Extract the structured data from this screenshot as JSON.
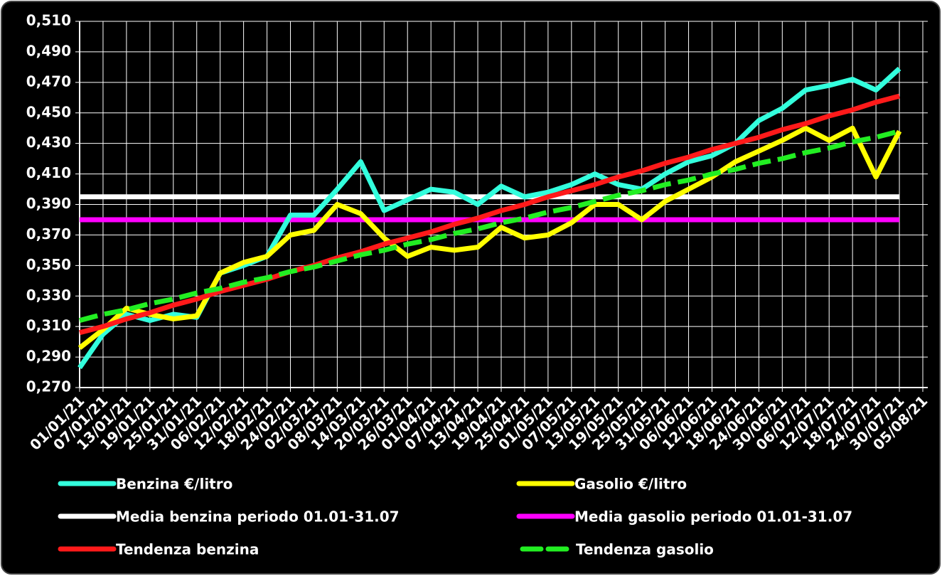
{
  "chart_data": {
    "type": "line",
    "categories": [
      "01/01/21",
      "07/01/21",
      "13/01/21",
      "19/01/21",
      "25/01/21",
      "31/01/21",
      "06/02/21",
      "12/02/21",
      "18/02/21",
      "24/02/21",
      "02/03/21",
      "08/03/21",
      "14/03/21",
      "20/03/21",
      "26/03/21",
      "01/04/21",
      "07/04/21",
      "13/04/21",
      "19/04/21",
      "25/04/21",
      "01/05/21",
      "07/05/21",
      "13/05/21",
      "19/05/21",
      "25/05/21",
      "31/05/21",
      "06/06/21",
      "12/06/21",
      "18/06/21",
      "24/06/21",
      "30/06/21",
      "06/07/21",
      "12/07/21",
      "18/07/21",
      "24/07/21",
      "30/07/21",
      "05/08/21"
    ],
    "series": [
      {
        "name": "Benzina €/litro",
        "color": "#33ffdd",
        "values": [
          0.283,
          0.305,
          0.318,
          0.314,
          0.318,
          0.316,
          0.345,
          0.35,
          0.356,
          0.383,
          0.383,
          0.4,
          0.418,
          0.386,
          0.393,
          0.4,
          0.398,
          0.39,
          0.402,
          0.395,
          0.398,
          0.403,
          0.41,
          0.403,
          0.4,
          0.41,
          0.418,
          0.422,
          0.43,
          0.445,
          0.453,
          0.465,
          0.468,
          0.472,
          0.465,
          0.479,
          null
        ]
      },
      {
        "name": "Gasolio €/litro",
        "color": "#ffff00",
        "values": [
          0.296,
          0.308,
          0.322,
          0.318,
          0.315,
          0.317,
          0.345,
          0.352,
          0.356,
          0.37,
          0.373,
          0.39,
          0.384,
          0.368,
          0.356,
          0.362,
          0.36,
          0.362,
          0.375,
          0.368,
          0.37,
          0.378,
          0.39,
          0.39,
          0.38,
          0.392,
          0.4,
          0.408,
          0.418,
          0.425,
          0.432,
          0.44,
          0.432,
          0.44,
          0.408,
          0.438,
          null
        ]
      },
      {
        "name": "Media benzina periodo 01.01-31.07",
        "color": "#ffffff",
        "values": [
          0.395,
          0.395,
          0.395,
          0.395,
          0.395,
          0.395,
          0.395,
          0.395,
          0.395,
          0.395,
          0.395,
          0.395,
          0.395,
          0.395,
          0.395,
          0.395,
          0.395,
          0.395,
          0.395,
          0.395,
          0.395,
          0.395,
          0.395,
          0.395,
          0.395,
          0.395,
          0.395,
          0.395,
          0.395,
          0.395,
          0.395,
          0.395,
          0.395,
          0.395,
          0.395,
          0.395,
          null
        ]
      },
      {
        "name": "Media gasolio periodo 01.01-31.07",
        "color": "#ff00ff",
        "values": [
          0.38,
          0.38,
          0.38,
          0.38,
          0.38,
          0.38,
          0.38,
          0.38,
          0.38,
          0.38,
          0.38,
          0.38,
          0.38,
          0.38,
          0.38,
          0.38,
          0.38,
          0.38,
          0.38,
          0.38,
          0.38,
          0.38,
          0.38,
          0.38,
          0.38,
          0.38,
          0.38,
          0.38,
          0.38,
          0.38,
          0.38,
          0.38,
          0.38,
          0.38,
          0.38,
          0.38,
          null
        ]
      },
      {
        "name": "Tendenza benzina",
        "color": "#ff1a1a",
        "values": [
          0.306,
          0.31,
          0.315,
          0.319,
          0.324,
          0.328,
          0.333,
          0.337,
          0.341,
          0.346,
          0.35,
          0.355,
          0.359,
          0.364,
          0.368,
          0.372,
          0.377,
          0.381,
          0.386,
          0.39,
          0.395,
          0.399,
          0.403,
          0.408,
          0.412,
          0.417,
          0.421,
          0.426,
          0.43,
          0.434,
          0.439,
          0.443,
          0.448,
          0.452,
          0.457,
          0.461,
          null
        ]
      },
      {
        "name": "Tendenza gasolio",
        "color": "#22ee22",
        "dashed": true,
        "values": [
          0.314,
          0.318,
          0.321,
          0.325,
          0.328,
          0.332,
          0.335,
          0.339,
          0.342,
          0.346,
          0.349,
          0.353,
          0.357,
          0.36,
          0.364,
          0.367,
          0.371,
          0.374,
          0.378,
          0.381,
          0.385,
          0.388,
          0.392,
          0.396,
          0.399,
          0.403,
          0.406,
          0.41,
          0.413,
          0.417,
          0.42,
          0.424,
          0.427,
          0.431,
          0.434,
          0.438,
          null
        ]
      }
    ],
    "ylim": [
      0.27,
      0.51
    ],
    "yticks": [
      {
        "value": 0.27,
        "label": "0,270"
      },
      {
        "value": 0.29,
        "label": "0,290"
      },
      {
        "value": 0.31,
        "label": "0,310"
      },
      {
        "value": 0.33,
        "label": "0,330"
      },
      {
        "value": 0.35,
        "label": "0,350"
      },
      {
        "value": 0.37,
        "label": "0,370"
      },
      {
        "value": 0.39,
        "label": "0,390"
      },
      {
        "value": 0.41,
        "label": "0,410"
      },
      {
        "value": 0.43,
        "label": "0,430"
      },
      {
        "value": 0.45,
        "label": "0,450"
      },
      {
        "value": 0.47,
        "label": "0,470"
      },
      {
        "value": 0.49,
        "label": "0,490"
      },
      {
        "value": 0.51,
        "label": "0,510"
      }
    ],
    "grid": true,
    "legend": "bottom"
  }
}
